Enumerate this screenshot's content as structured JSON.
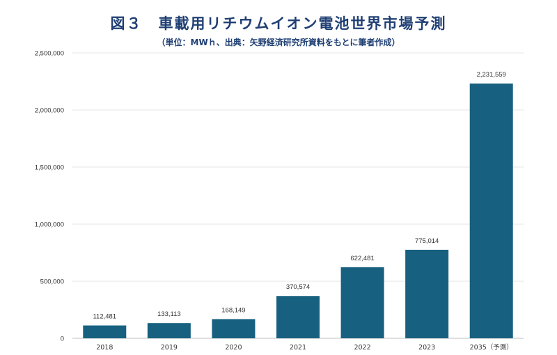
{
  "chart_data": {
    "type": "bar",
    "title": "図３　車載用リチウムイオン電池世界市場予測",
    "subtitle": "（単位：MWｈ、出典：矢野経済研究所資料をもとに筆者作成）",
    "categories": [
      "2018",
      "2019",
      "2020",
      "2021",
      "2022",
      "2023",
      "2035（予測）"
    ],
    "values": [
      112481,
      133113,
      168149,
      370574,
      622481,
      775014,
      2231559
    ],
    "data_labels": [
      "112,481",
      "133,113",
      "168,149",
      "370,574",
      "622,481",
      "775,014",
      "2,231,559"
    ],
    "y_ticks": [
      "0",
      "500,000",
      "1,000,000",
      "1,500,000",
      "2,000,000",
      "2,500,000"
    ],
    "ylim": [
      0,
      2500000
    ],
    "grid": true,
    "bar_color": "#17607f"
  }
}
